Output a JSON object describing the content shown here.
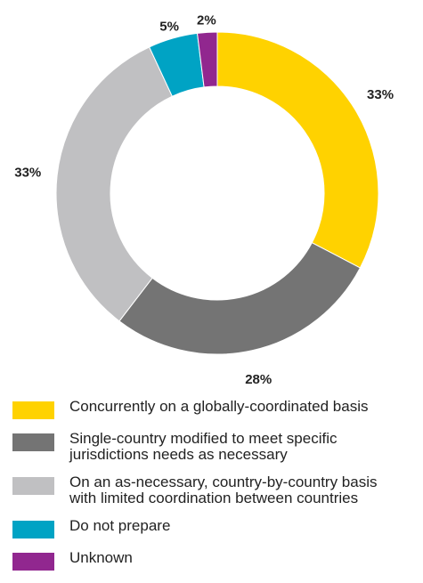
{
  "chart_data": {
    "type": "donut",
    "slices": [
      {
        "label": "Concurrently on a globally-coordinated basis",
        "value": 33,
        "display": "33%",
        "color": "#ffd200"
      },
      {
        "label": "Single-country modified to meet specific jurisdictions needs as necessary",
        "value": 28,
        "display": "28%",
        "color": "#747474"
      },
      {
        "label": "On an as-necessary, country-by-country basis with limited coordination between countries",
        "value": 33,
        "display": "33%",
        "color": "#c0c0c2"
      },
      {
        "label": "Do not prepare",
        "value": 5,
        "display": "5%",
        "color": "#00a3c4"
      },
      {
        "label": "Unknown",
        "value": 2,
        "display": "2%",
        "color": "#91278f"
      }
    ],
    "legend_position": "bottom"
  }
}
